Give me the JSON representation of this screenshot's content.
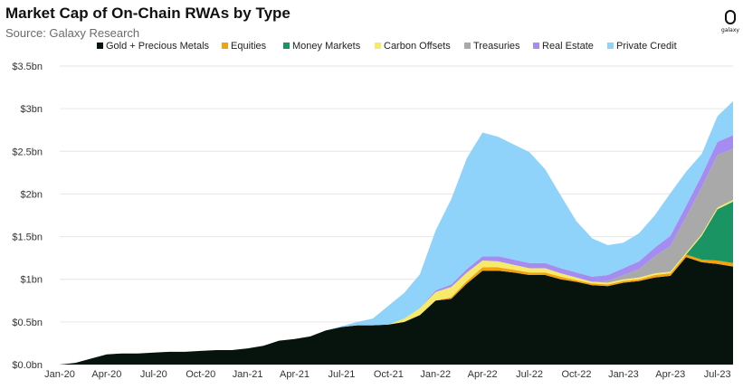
{
  "title": "Market Cap of On-Chain RWAs by Type",
  "subtitle": "Source: Galaxy Research",
  "logo_text": "galaxy",
  "colors": {
    "gold": "#06140d",
    "equities": "#f2a20c",
    "money_markets": "#1b9463",
    "carbon": "#f7ea6a",
    "treasuries": "#a9a9a9",
    "real_estate": "#a58cf0",
    "private_credit": "#8fd3fa",
    "grid": "#e6e6e6"
  },
  "chart_data": {
    "type": "area",
    "stacked": true,
    "title": "Market Cap of On-Chain RWAs by Type",
    "subtitle": "Source: Galaxy Research",
    "legend_position": "top",
    "grid": true,
    "y_unit": "bn USD",
    "ylim": [
      0,
      3.5
    ],
    "y_ticks": [
      0,
      0.5,
      1,
      1.5,
      2,
      2.5,
      3,
      3.5
    ],
    "y_tick_labels": [
      "$0.0bn",
      "$0.5bn",
      "$1bn",
      "$1.5bn",
      "$2bn",
      "$2.5bn",
      "$3bn",
      "$3.5bn"
    ],
    "x_tick_labels": [
      "Jan-20",
      "Apr-20",
      "Jul-20",
      "Oct-20",
      "Jan-21",
      "Apr-21",
      "Jul-21",
      "Oct-21",
      "Jan-22",
      "Apr-22",
      "Jul-22",
      "Oct-22",
      "Jan-23",
      "Apr-23",
      "Jul-23"
    ],
    "x": [
      "2020-01",
      "2020-02",
      "2020-03",
      "2020-04",
      "2020-05",
      "2020-06",
      "2020-07",
      "2020-08",
      "2020-09",
      "2020-10",
      "2020-11",
      "2020-12",
      "2021-01",
      "2021-02",
      "2021-03",
      "2021-04",
      "2021-05",
      "2021-06",
      "2021-07",
      "2021-08",
      "2021-09",
      "2021-10",
      "2021-11",
      "2021-12",
      "2022-01",
      "2022-02",
      "2022-03",
      "2022-04",
      "2022-05",
      "2022-06",
      "2022-07",
      "2022-08",
      "2022-09",
      "2022-10",
      "2022-11",
      "2022-12",
      "2023-01",
      "2023-02",
      "2023-03",
      "2023-04",
      "2023-05",
      "2023-06",
      "2023-07",
      "2023-08"
    ],
    "series": [
      {
        "name": "Gold + Precious Metals",
        "color_key": "gold",
        "values": [
          0,
          0.02,
          0.07,
          0.12,
          0.13,
          0.13,
          0.14,
          0.15,
          0.15,
          0.16,
          0.17,
          0.17,
          0.19,
          0.22,
          0.28,
          0.3,
          0.33,
          0.4,
          0.44,
          0.46,
          0.46,
          0.47,
          0.5,
          0.58,
          0.75,
          0.77,
          0.95,
          1.1,
          1.1,
          1.08,
          1.05,
          1.05,
          1.0,
          0.97,
          0.93,
          0.92,
          0.96,
          0.98,
          1.02,
          1.04,
          1.26,
          1.2,
          1.18,
          1.15
        ]
      },
      {
        "name": "Equities",
        "color_key": "equities",
        "values": [
          0,
          0,
          0,
          0,
          0,
          0,
          0,
          0,
          0,
          0,
          0,
          0,
          0,
          0,
          0,
          0,
          0,
          0,
          0,
          0,
          0,
          0,
          0,
          0,
          0,
          0.02,
          0.03,
          0.04,
          0.04,
          0.03,
          0.03,
          0.03,
          0.03,
          0.02,
          0.02,
          0.02,
          0.02,
          0.02,
          0.03,
          0.03,
          0.03,
          0.03,
          0.04,
          0.04
        ]
      },
      {
        "name": "Money Markets",
        "color_key": "money_markets",
        "values": [
          0,
          0,
          0,
          0,
          0,
          0,
          0,
          0,
          0,
          0,
          0,
          0,
          0,
          0,
          0,
          0,
          0,
          0,
          0,
          0,
          0,
          0,
          0,
          0,
          0,
          0,
          0,
          0,
          0,
          0,
          0,
          0,
          0,
          0,
          0,
          0,
          0,
          0,
          0,
          0,
          0,
          0.28,
          0.6,
          0.72
        ]
      },
      {
        "name": "Carbon Offsets",
        "color_key": "carbon",
        "values": [
          0,
          0,
          0,
          0,
          0,
          0,
          0,
          0,
          0,
          0,
          0,
          0,
          0,
          0,
          0,
          0,
          0,
          0,
          0,
          0,
          0,
          0,
          0.04,
          0.08,
          0.1,
          0.12,
          0.1,
          0.08,
          0.07,
          0.06,
          0.05,
          0.05,
          0.04,
          0.03,
          0.02,
          0.02,
          0.02,
          0.02,
          0.02,
          0.02,
          0.02,
          0.02,
          0.02,
          0.02
        ]
      },
      {
        "name": "Treasuries",
        "color_key": "treasuries",
        "values": [
          0,
          0,
          0,
          0,
          0,
          0,
          0,
          0,
          0,
          0,
          0,
          0,
          0,
          0,
          0,
          0,
          0,
          0,
          0,
          0,
          0,
          0,
          0,
          0,
          0,
          0,
          0,
          0,
          0,
          0,
          0,
          0,
          0,
          0,
          0,
          0.02,
          0.05,
          0.1,
          0.2,
          0.3,
          0.42,
          0.55,
          0.62,
          0.6
        ]
      },
      {
        "name": "Real Estate",
        "color_key": "real_estate",
        "values": [
          0,
          0,
          0,
          0,
          0,
          0,
          0,
          0,
          0,
          0,
          0,
          0,
          0,
          0,
          0,
          0,
          0,
          0,
          0,
          0,
          0,
          0,
          0,
          0,
          0.02,
          0.03,
          0.04,
          0.05,
          0.06,
          0.06,
          0.06,
          0.06,
          0.06,
          0.06,
          0.06,
          0.07,
          0.08,
          0.09,
          0.1,
          0.12,
          0.13,
          0.14,
          0.15,
          0.16
        ]
      },
      {
        "name": "Private Credit",
        "color_key": "private_credit",
        "values": [
          0,
          0,
          0,
          0,
          0,
          0,
          0,
          0,
          0,
          0,
          0,
          0,
          0,
          0,
          0,
          0,
          0,
          0,
          0.01,
          0.04,
          0.08,
          0.22,
          0.3,
          0.4,
          0.7,
          1.0,
          1.3,
          1.45,
          1.4,
          1.35,
          1.3,
          1.1,
          0.85,
          0.6,
          0.45,
          0.35,
          0.3,
          0.33,
          0.38,
          0.5,
          0.4,
          0.25,
          0.3,
          0.4
        ]
      }
    ]
  }
}
